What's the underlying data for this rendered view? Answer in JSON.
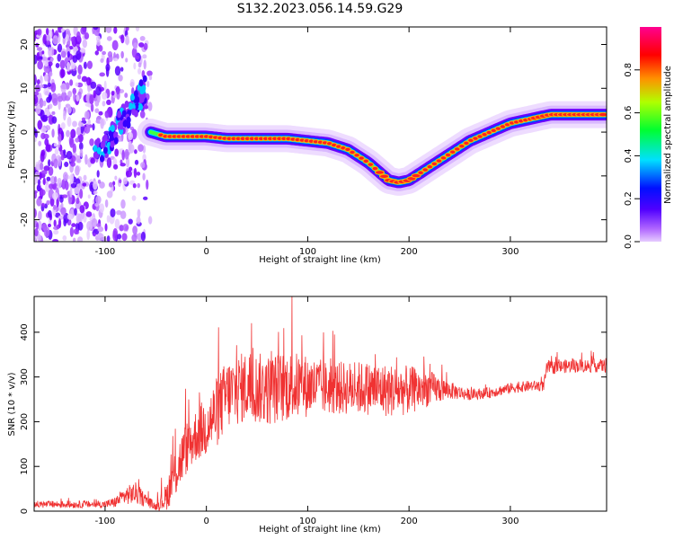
{
  "title": "S132.2023.056.14.59.G29",
  "chart_data": [
    {
      "type": "heatmap",
      "title": "",
      "xlabel": "Height of straight line (km)",
      "ylabel": "Frequency (Hz)",
      "xlim": [
        -170,
        395
      ],
      "ylim": [
        -25,
        24
      ],
      "xticks": [
        -100,
        0,
        100,
        200,
        300
      ],
      "yticks": [
        -20,
        -10,
        0,
        10,
        20
      ],
      "colorbar": {
        "label": "Normalized spectral amplitude",
        "range": [
          0,
          1
        ],
        "ticks": [
          0.0,
          0.2,
          0.4,
          0.6,
          0.8
        ],
        "colormap": "rainbow",
        "low_color": "#e6ccff",
        "high_color": "#ff0080"
      },
      "ridge": {
        "description_free": true,
        "x": [
          -55,
          -40,
          -20,
          0,
          20,
          40,
          60,
          80,
          100,
          120,
          140,
          160,
          180,
          190,
          200,
          220,
          240,
          260,
          280,
          300,
          320,
          340,
          360,
          380,
          395
        ],
        "y": [
          0,
          -1,
          -1,
          -1,
          -1.5,
          -1.5,
          -1.5,
          -1.5,
          -2,
          -2.5,
          -4,
          -7,
          -11,
          -11.5,
          -11,
          -8,
          -5,
          -2,
          0,
          2,
          3,
          4,
          4,
          4,
          4
        ]
      },
      "noise_region": {
        "x": [
          -170,
          -55
        ],
        "y": [
          -25,
          24
        ]
      }
    },
    {
      "type": "line",
      "title": "",
      "xlabel": "Height of straight line (km)",
      "ylabel": "SNR (10 * v/v)",
      "xlim": [
        -170,
        395
      ],
      "ylim": [
        0,
        480
      ],
      "xticks": [
        -100,
        0,
        100,
        200,
        300
      ],
      "yticks": [
        0,
        100,
        200,
        300,
        400
      ],
      "color": "#f03232",
      "envelope_x": [
        -170,
        -100,
        -90,
        -80,
        -70,
        -60,
        -50,
        -40,
        -30,
        -20,
        -10,
        0,
        10,
        20,
        40,
        60,
        80,
        100,
        120,
        140,
        160,
        180,
        200,
        220,
        240,
        260,
        280,
        300,
        320,
        333,
        336,
        360,
        395
      ],
      "envelope_mean": [
        15,
        15,
        20,
        35,
        40,
        25,
        10,
        30,
        90,
        140,
        170,
        190,
        220,
        260,
        280,
        270,
        280,
        280,
        275,
        275,
        275,
        270,
        270,
        275,
        270,
        260,
        265,
        275,
        280,
        280,
        320,
        325,
        325
      ],
      "envelope_spread": [
        8,
        8,
        12,
        20,
        25,
        15,
        8,
        30,
        60,
        60,
        60,
        70,
        80,
        80,
        80,
        80,
        80,
        70,
        60,
        60,
        60,
        60,
        55,
        40,
        20,
        12,
        12,
        12,
        12,
        12,
        15,
        15,
        15
      ]
    }
  ]
}
